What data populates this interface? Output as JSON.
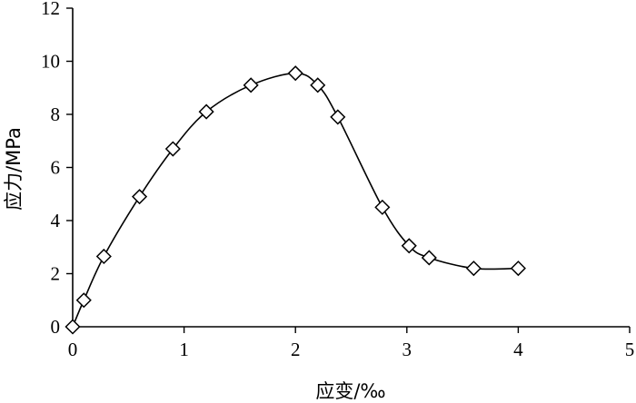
{
  "chart_data": {
    "type": "line",
    "title": "",
    "xlabel": "应变/‰",
    "ylabel": "应力/MPa",
    "xlim": [
      0,
      5
    ],
    "ylim": [
      0,
      12
    ],
    "xticks": [
      "0",
      "1",
      "2",
      "3",
      "4",
      "5"
    ],
    "yticks": [
      "0",
      "2",
      "4",
      "6",
      "8",
      "10",
      "12"
    ],
    "grid": false,
    "legend": "none",
    "marker": "diamond-open",
    "series": [
      {
        "x": [
          0,
          0.1,
          0.28,
          0.6,
          0.9,
          1.2,
          1.6,
          2.0,
          2.2,
          2.38,
          2.78,
          3.02,
          3.2,
          3.6,
          4.0
        ],
        "y": [
          0,
          1.0,
          2.65,
          4.9,
          6.7,
          8.1,
          9.1,
          9.55,
          9.1,
          7.9,
          4.5,
          3.05,
          2.6,
          2.2,
          2.2
        ]
      }
    ]
  }
}
